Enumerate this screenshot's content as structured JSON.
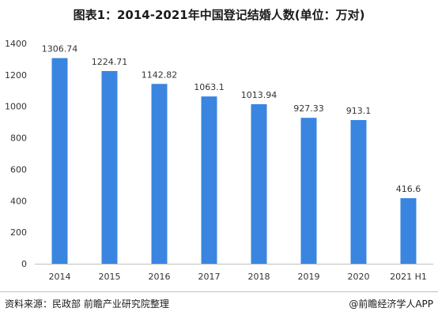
{
  "header": {
    "title": "图表1：2014-2021年中国登记结婚人数(单位：万对)"
  },
  "footer": {
    "source": "资料来源：民政部 前瞻产业研究院整理",
    "brand": "@前瞻经济学人APP"
  },
  "colors": {
    "bar": "#3a85e0",
    "axis": "#bfbfbf",
    "text": "#333333"
  },
  "chart_data": {
    "type": "bar",
    "title": "图表1：2014-2021年中国登记结婚人数(单位：万对)",
    "categories": [
      "2014",
      "2015",
      "2016",
      "2017",
      "2018",
      "2019",
      "2020",
      "2021 H1"
    ],
    "value_labels": [
      "1306.74",
      "1224.71",
      "1142.82",
      "1063.1",
      "1013.94",
      "927.33",
      "913.1",
      "416.6"
    ],
    "values": [
      1306.74,
      1224.71,
      1142.82,
      1063.1,
      1013.94,
      927.33,
      913.1,
      416.6
    ],
    "ylim": [
      0,
      1400
    ],
    "yticks": [
      0,
      200,
      400,
      600,
      800,
      1000,
      1200,
      1400
    ],
    "xlabel": "",
    "ylabel": "",
    "grid": false,
    "legend": "none"
  }
}
